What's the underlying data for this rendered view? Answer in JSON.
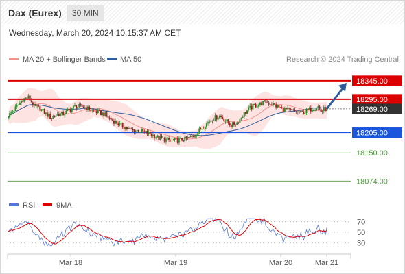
{
  "header": {
    "instrument": "Dax (Eurex)",
    "timeframe": "30 MIN",
    "datetime": "Wednesday, March 20, 2024 10:15:37 AM CET"
  },
  "legend": {
    "ma20": {
      "label": "MA 20 + Bollinger Bands",
      "color": "#f4908c"
    },
    "ma50": {
      "label": "MA 50",
      "color": "#2e5c9a"
    }
  },
  "copyright": "Research © 2024 Trading Central",
  "rsi_legend": {
    "rsi": {
      "label": "RSI",
      "color": "#5577dd"
    },
    "ma9": {
      "label": "9MA",
      "color": "#dd0000"
    }
  },
  "chart_data": {
    "type": "candlestick",
    "ylim": [
      18045,
      18378
    ],
    "x_ticks": [
      "Mar 18",
      "Mar 19",
      "Mar 20",
      "Mar 21"
    ],
    "levels": [
      {
        "value": 18345.0,
        "label": "18345.00",
        "kind": "resistance",
        "color": "#dd0000"
      },
      {
        "value": 18295.0,
        "label": "18295.00",
        "kind": "resistance",
        "color": "#dd0000"
      },
      {
        "value": 18269.0,
        "label": "18269.00",
        "kind": "last",
        "color": "#333333"
      },
      {
        "value": 18205.0,
        "label": "18205.00",
        "kind": "pivot",
        "color": "#1a56db"
      },
      {
        "value": 18150.0,
        "label": "18150.00",
        "kind": "support",
        "color": "#4c9a3a"
      },
      {
        "value": 18074.0,
        "label": "18074.00",
        "kind": "support",
        "color": "#4c9a3a"
      }
    ],
    "rsi": {
      "ylim": [
        20,
        80
      ],
      "ticks": [
        {
          "value": 70,
          "label": "70"
        },
        {
          "value": 50,
          "label": "50"
        },
        {
          "value": 30,
          "label": "30"
        }
      ]
    },
    "colors": {
      "up": "#2e8b2e",
      "down": "#a02020"
    }
  }
}
